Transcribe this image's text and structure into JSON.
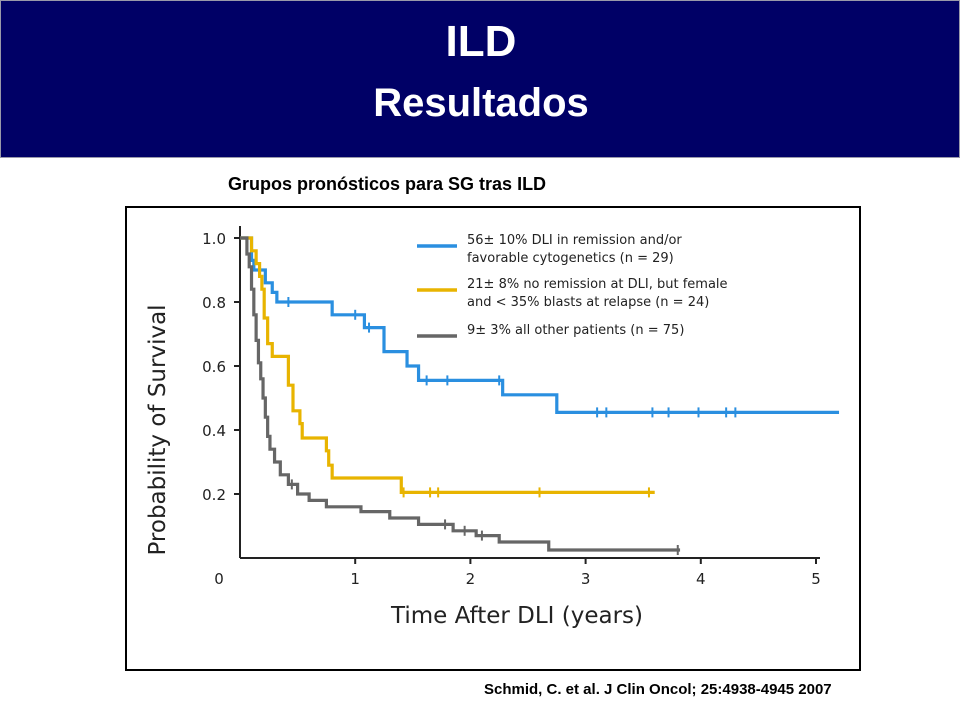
{
  "header": {
    "title_line1": "ILD",
    "title_line2": "Resultados",
    "background_color": "#000066"
  },
  "subtitle": "Grupos pronósticos para SG tras ILD",
  "citation": "Schmid, C. et al. J Clin Oncol; 25:4938-4945 2007",
  "chart_data": {
    "type": "line",
    "step": true,
    "xlabel": "Time After DLI (years)",
    "ylabel": "Probability of Survival",
    "xlim": [
      0,
      5
    ],
    "ylim": [
      0,
      1.0
    ],
    "x_ticks": [
      "0",
      "1",
      "2",
      "3",
      "4",
      "5"
    ],
    "y_ticks": [
      "0.2",
      "0.4",
      "0.6",
      "0.8",
      "1.0"
    ],
    "grid": false,
    "legend_position": "top-right",
    "series": [
      {
        "label_line1": "56± 10% DLI in remission and/or",
        "label_line2": "favorable cytogenetics (n = 29)",
        "color": "#2a8fe0",
        "points": [
          [
            0,
            1.0
          ],
          [
            0.1,
            1.0
          ],
          [
            0.1,
            0.93
          ],
          [
            0.12,
            0.93
          ],
          [
            0.12,
            0.9
          ],
          [
            0.22,
            0.9
          ],
          [
            0.22,
            0.86
          ],
          [
            0.28,
            0.86
          ],
          [
            0.28,
            0.83
          ],
          [
            0.32,
            0.83
          ],
          [
            0.32,
            0.8
          ],
          [
            0.8,
            0.8
          ],
          [
            0.8,
            0.76
          ],
          [
            1.08,
            0.76
          ],
          [
            1.08,
            0.72
          ],
          [
            1.25,
            0.72
          ],
          [
            1.25,
            0.645
          ],
          [
            1.45,
            0.645
          ],
          [
            1.45,
            0.6
          ],
          [
            1.55,
            0.6
          ],
          [
            1.55,
            0.555
          ],
          [
            2.28,
            0.555
          ],
          [
            2.28,
            0.51
          ],
          [
            2.75,
            0.51
          ],
          [
            2.75,
            0.455
          ],
          [
            5.2,
            0.455
          ]
        ],
        "censored": [
          0.42,
          1.0,
          1.12,
          1.62,
          1.8,
          2.25,
          3.1,
          3.18,
          3.58,
          3.72,
          3.98,
          4.22,
          4.3
        ]
      },
      {
        "label_line1": "21± 8% no remission at DLI, but female",
        "label_line2": "and < 35% blasts at relapse (n = 24)",
        "color": "#e8b400",
        "points": [
          [
            0,
            1.0
          ],
          [
            0.1,
            1.0
          ],
          [
            0.1,
            0.96
          ],
          [
            0.14,
            0.96
          ],
          [
            0.14,
            0.92
          ],
          [
            0.17,
            0.92
          ],
          [
            0.17,
            0.88
          ],
          [
            0.19,
            0.88
          ],
          [
            0.19,
            0.84
          ],
          [
            0.21,
            0.84
          ],
          [
            0.21,
            0.75
          ],
          [
            0.24,
            0.75
          ],
          [
            0.24,
            0.67
          ],
          [
            0.28,
            0.67
          ],
          [
            0.28,
            0.63
          ],
          [
            0.42,
            0.63
          ],
          [
            0.42,
            0.54
          ],
          [
            0.46,
            0.54
          ],
          [
            0.46,
            0.46
          ],
          [
            0.52,
            0.46
          ],
          [
            0.52,
            0.42
          ],
          [
            0.54,
            0.42
          ],
          [
            0.54,
            0.375
          ],
          [
            0.75,
            0.375
          ],
          [
            0.75,
            0.335
          ],
          [
            0.77,
            0.335
          ],
          [
            0.77,
            0.29
          ],
          [
            0.8,
            0.29
          ],
          [
            0.8,
            0.25
          ],
          [
            1.4,
            0.25
          ],
          [
            1.4,
            0.205
          ],
          [
            3.6,
            0.205
          ]
        ],
        "censored": [
          1.42,
          1.65,
          1.72,
          2.6,
          3.55
        ]
      },
      {
        "label_line1": "9± 3% all other patients (n = 75)",
        "label_line2": "",
        "color": "#666666",
        "points": [
          [
            0,
            1.0
          ],
          [
            0.06,
            1.0
          ],
          [
            0.06,
            0.95
          ],
          [
            0.08,
            0.95
          ],
          [
            0.08,
            0.91
          ],
          [
            0.1,
            0.91
          ],
          [
            0.1,
            0.84
          ],
          [
            0.12,
            0.84
          ],
          [
            0.12,
            0.76
          ],
          [
            0.14,
            0.76
          ],
          [
            0.14,
            0.68
          ],
          [
            0.16,
            0.68
          ],
          [
            0.16,
            0.61
          ],
          [
            0.18,
            0.61
          ],
          [
            0.18,
            0.56
          ],
          [
            0.2,
            0.56
          ],
          [
            0.2,
            0.5
          ],
          [
            0.22,
            0.5
          ],
          [
            0.22,
            0.44
          ],
          [
            0.24,
            0.44
          ],
          [
            0.24,
            0.38
          ],
          [
            0.26,
            0.38
          ],
          [
            0.26,
            0.34
          ],
          [
            0.3,
            0.34
          ],
          [
            0.3,
            0.3
          ],
          [
            0.35,
            0.3
          ],
          [
            0.35,
            0.26
          ],
          [
            0.42,
            0.26
          ],
          [
            0.42,
            0.23
          ],
          [
            0.5,
            0.23
          ],
          [
            0.5,
            0.2
          ],
          [
            0.6,
            0.2
          ],
          [
            0.6,
            0.18
          ],
          [
            0.75,
            0.18
          ],
          [
            0.75,
            0.16
          ],
          [
            1.05,
            0.16
          ],
          [
            1.05,
            0.145
          ],
          [
            1.3,
            0.145
          ],
          [
            1.3,
            0.125
          ],
          [
            1.55,
            0.125
          ],
          [
            1.55,
            0.105
          ],
          [
            1.85,
            0.105
          ],
          [
            1.85,
            0.085
          ],
          [
            2.05,
            0.085
          ],
          [
            2.05,
            0.07
          ],
          [
            2.25,
            0.07
          ],
          [
            2.25,
            0.05
          ],
          [
            2.68,
            0.05
          ],
          [
            2.68,
            0.025
          ],
          [
            3.82,
            0.025
          ]
        ],
        "censored": [
          0.45,
          1.78,
          1.95,
          2.1,
          3.8
        ]
      }
    ]
  }
}
